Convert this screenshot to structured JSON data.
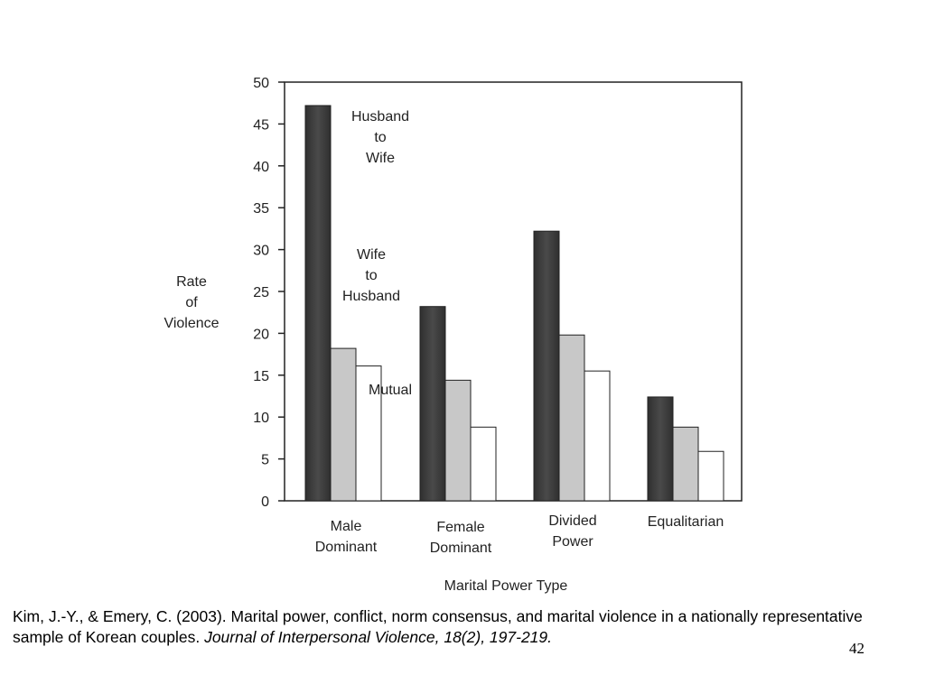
{
  "chart_data": {
    "type": "bar",
    "categories": [
      [
        "Male",
        "Dominant"
      ],
      [
        "Female",
        "Dominant"
      ],
      [
        "Divided",
        "Power"
      ],
      [
        "Equalitarian"
      ]
    ],
    "series": [
      {
        "name": "Husband to Wife",
        "values": [
          47.2,
          23.2,
          32.2,
          12.4
        ],
        "color": "#3e3e3e"
      },
      {
        "name": "Wife to Husband",
        "values": [
          18.2,
          14.4,
          19.8,
          8.8
        ],
        "color": "#c8c8c8"
      },
      {
        "name": "Mutual",
        "values": [
          16.1,
          8.8,
          15.5,
          5.9
        ],
        "color": "#ffffff"
      }
    ],
    "series_annotations": [
      [
        "Husband",
        "to",
        "Wife"
      ],
      [
        "Wife",
        "to",
        "Husband"
      ],
      [
        "Mutual"
      ]
    ],
    "ylabel": [
      "Rate",
      "of",
      "Violence"
    ],
    "xlabel": "Marital Power Type",
    "ylim": [
      0,
      50
    ],
    "yticks": [
      0,
      5,
      10,
      15,
      20,
      25,
      30,
      35,
      40,
      45,
      50
    ],
    "grid": false,
    "legend": "none"
  },
  "citation": {
    "text": "Kim, J.-Y., & Emery, C. (2003). Marital power, conflict, norm consensus, and marital violence in a nationally representative sample of Korean couples. ",
    "journal": "Journal of Interpersonal Violence, 18(2), 197-219."
  },
  "page_number": "42"
}
